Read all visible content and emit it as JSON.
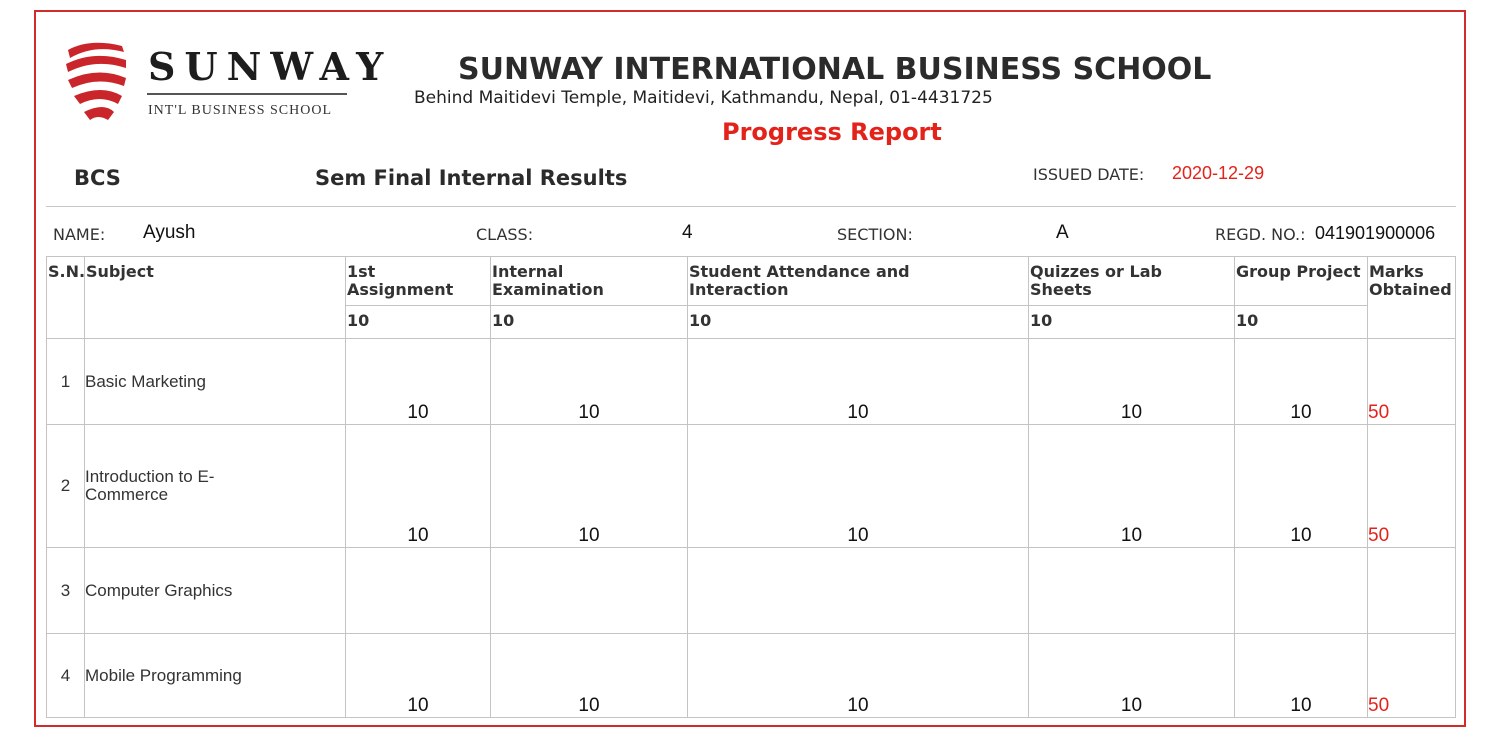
{
  "brand": {
    "name": "SUNWAY",
    "sub": "INT'L BUSINESS SCHOOL"
  },
  "header": {
    "school": "SUNWAY INTERNATIONAL BUSINESS SCHOOL",
    "address": "Behind Maitidevi Temple, Maitidevi, Kathmandu, Nepal, 01-4431725",
    "report_title": "Progress Report",
    "program": "BCS",
    "semester_label": "Sem Final Internal Results",
    "issued_label": "ISSUED DATE:",
    "issued_date": "2020-12-29"
  },
  "student": {
    "name_label": "NAME:",
    "name": "Ayush",
    "class_label": "CLASS:",
    "class": "4",
    "section_label": "SECTION:",
    "section": "A",
    "regd_label": "REGD. NO.:",
    "regd": "041901900006"
  },
  "table": {
    "headers": {
      "sn": "S.N.",
      "subject": "Subject",
      "c1_line1": "1st",
      "c1_line2": "Assignment",
      "c2_line1": "Internal",
      "c2_line2": "Examination",
      "c3_line1": "Student Attendance and",
      "c3_line2": "Interaction",
      "c4_line1": "Quizzes or Lab",
      "c4_line2": "Sheets",
      "c5": "Group Project",
      "c6_line1": "Marks",
      "c6_line2": "Obtained"
    },
    "max_marks": [
      "10",
      "10",
      "10",
      "10",
      "10"
    ],
    "rows": [
      {
        "sn": "1",
        "subject": "Basic Marketing",
        "scores": [
          "10",
          "10",
          "10",
          "10",
          "10"
        ],
        "total": "50"
      },
      {
        "sn": "2",
        "subject": "Introduction to E-Commerce",
        "subject_l1": "Introduction to E-",
        "subject_l2": "Commerce",
        "scores": [
          "10",
          "10",
          "10",
          "10",
          "10"
        ],
        "total": "50"
      },
      {
        "sn": "3",
        "subject": "Computer Graphics",
        "scores": [
          "",
          "",
          "",
          "",
          ""
        ],
        "total": ""
      },
      {
        "sn": "4",
        "subject": "Mobile Programming",
        "scores": [
          "10",
          "10",
          "10",
          "10",
          "10"
        ],
        "total": "50"
      }
    ]
  },
  "colors": {
    "accent": "#e3221a",
    "border": "#d22b2b"
  }
}
